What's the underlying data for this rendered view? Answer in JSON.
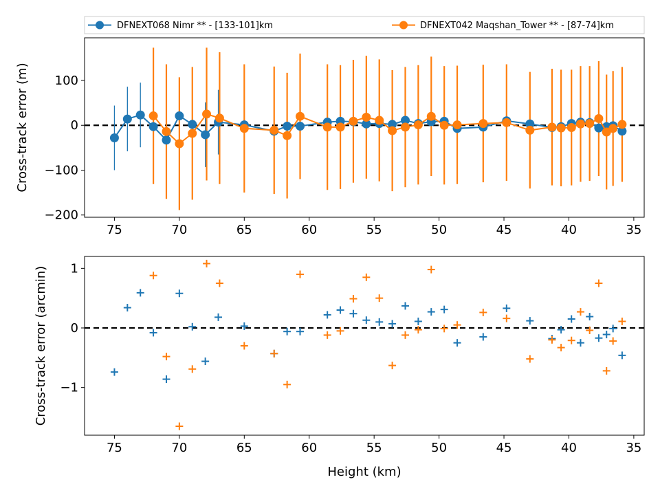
{
  "legend": {
    "items": [
      {
        "label": "DFNEXT068 Nimr **  - [133-101]km",
        "color": "#1f77b4"
      },
      {
        "label": "DFNEXT042 Maqshan_Tower **  - [87-74]km",
        "color": "#ff7f0e"
      }
    ]
  },
  "chart_data": [
    {
      "type": "line",
      "title": "",
      "xlabel": "",
      "ylabel": "Cross-track error (m)",
      "xlim": [
        77.3,
        34.2
      ],
      "ylim": [
        -205,
        195
      ],
      "x_inverted": true,
      "xticks": [
        "75",
        "70",
        "65",
        "60",
        "55",
        "50",
        "45",
        "40",
        "35"
      ],
      "yticks": [
        "100",
        "0",
        "−100",
        "−200"
      ],
      "reference_line": 0,
      "error_bars": true,
      "series": [
        {
          "name": "DFNEXT068 Nimr **  - [133-101]km",
          "color": "#1f77b4",
          "x": [
            75,
            74,
            73,
            72,
            71,
            70,
            69,
            68,
            67,
            65,
            62.7,
            61.7,
            60.7,
            58.6,
            57.6,
            56.6,
            55.6,
            54.6,
            53.6,
            52.6,
            51.6,
            50.6,
            49.6,
            48.6,
            46.6,
            44.8,
            43,
            41.3,
            40.6,
            39.8,
            39.1,
            38.4,
            37.7,
            37.1,
            36.6,
            35.9
          ],
          "y": [
            -28,
            14,
            23,
            -3,
            -33,
            21,
            2,
            -21,
            7,
            1,
            -13,
            -2,
            -2,
            7,
            9,
            8,
            3,
            4,
            2,
            11,
            4,
            8,
            9,
            -7,
            -4,
            10,
            3,
            -5,
            -3,
            4,
            7,
            6,
            -6,
            -3,
            -1,
            -13
          ],
          "err": [
            72,
            72,
            72,
            72,
            72,
            72,
            72,
            72,
            72,
            72,
            72,
            72,
            72,
            72,
            72,
            72,
            72,
            72,
            72,
            72,
            72,
            72,
            72,
            72,
            72,
            72,
            72,
            72,
            72,
            72,
            72,
            72,
            72,
            72,
            72,
            72
          ]
        },
        {
          "name": "DFNEXT042 Maqshan_Tower **  - [87-74]km",
          "color": "#ff7f0e",
          "x": [
            72,
            71,
            70,
            69,
            67.9,
            66.9,
            65,
            62.7,
            61.7,
            60.7,
            58.6,
            57.6,
            56.6,
            55.6,
            54.6,
            53.6,
            52.6,
            51.6,
            50.6,
            49.6,
            48.6,
            46.6,
            44.8,
            43,
            41.3,
            40.6,
            39.8,
            39.1,
            38.4,
            37.7,
            37.1,
            36.6,
            35.9
          ],
          "y": [
            21,
            -14,
            -41,
            -18,
            25,
            16,
            -7,
            -11,
            -23,
            20,
            -4,
            -4,
            9,
            18,
            11,
            -12,
            -4,
            1,
            20,
            0,
            1,
            4,
            6,
            -11,
            -4,
            -6,
            -5,
            3,
            4,
            15,
            -15,
            -7,
            2
          ],
          "err": [
            152,
            150,
            148,
            148,
            148,
            147,
            143,
            142,
            140,
            140,
            140,
            138,
            137,
            137,
            136,
            135,
            134,
            133,
            133,
            132,
            132,
            131,
            130,
            130,
            130,
            130,
            129,
            129,
            128,
            128,
            128,
            128,
            128
          ]
        }
      ]
    },
    {
      "type": "scatter",
      "title": "",
      "xlabel": "Height (km)",
      "ylabel": "Cross-track error (arcmin)",
      "xlim": [
        77.3,
        34.2
      ],
      "ylim": [
        -1.8,
        1.2
      ],
      "x_inverted": true,
      "xticks": [
        "75",
        "70",
        "65",
        "60",
        "55",
        "50",
        "45",
        "40",
        "35"
      ],
      "yticks": [
        "1",
        "0",
        "−1"
      ],
      "reference_line": 0,
      "marker": "+",
      "series": [
        {
          "name": "DFNEXT068 Nimr **  - [133-101]km",
          "color": "#1f77b4",
          "x": [
            75,
            74,
            73,
            72,
            71,
            70,
            69,
            68,
            67,
            65,
            62.7,
            61.7,
            60.7,
            58.6,
            57.6,
            56.6,
            55.6,
            54.6,
            53.6,
            52.6,
            51.6,
            50.6,
            49.6,
            48.6,
            46.6,
            44.8,
            43,
            41.3,
            40.6,
            39.8,
            39.1,
            38.4,
            37.7,
            37.1,
            36.6,
            35.9
          ],
          "y": [
            -0.74,
            0.34,
            0.59,
            -0.08,
            -0.86,
            0.58,
            0.02,
            -0.56,
            0.18,
            0.03,
            -0.43,
            -0.06,
            -0.06,
            0.22,
            0.3,
            0.24,
            0.13,
            0.1,
            0.07,
            0.37,
            0.11,
            0.27,
            0.31,
            -0.25,
            -0.15,
            0.33,
            0.12,
            -0.18,
            -0.03,
            0.15,
            -0.25,
            0.19,
            -0.17,
            -0.11,
            -0.01,
            -0.46
          ]
        },
        {
          "name": "DFNEXT042 Maqshan_Tower **  - [87-74]km",
          "color": "#ff7f0e",
          "x": [
            72,
            71,
            70,
            69,
            67.9,
            66.9,
            65,
            62.7,
            61.7,
            60.7,
            58.6,
            57.6,
            56.6,
            55.6,
            54.6,
            53.6,
            52.6,
            51.6,
            50.6,
            49.6,
            48.6,
            46.6,
            44.8,
            43,
            41.3,
            40.6,
            39.8,
            39.1,
            38.4,
            37.7,
            37.1,
            36.6,
            35.9
          ],
          "y": [
            0.88,
            -0.48,
            -1.65,
            -0.69,
            1.08,
            0.75,
            -0.3,
            -0.43,
            -0.95,
            0.9,
            -0.12,
            -0.05,
            0.49,
            0.85,
            0.5,
            -0.63,
            -0.12,
            -0.03,
            0.98,
            -0.01,
            0.05,
            0.26,
            0.16,
            -0.52,
            -0.2,
            -0.33,
            -0.21,
            0.27,
            -0.04,
            0.75,
            -0.72,
            -0.22,
            0.11
          ]
        }
      ]
    }
  ]
}
